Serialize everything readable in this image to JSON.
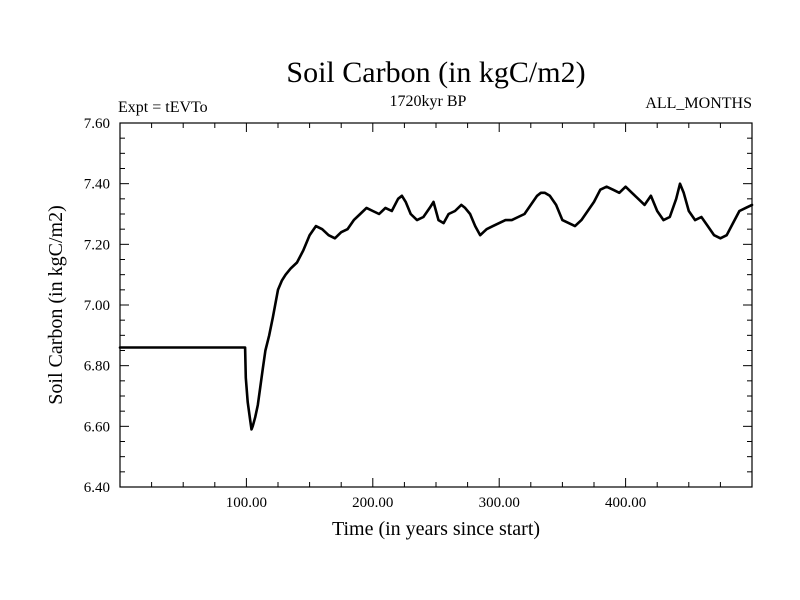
{
  "chart_data": {
    "type": "line",
    "title": "Soil Carbon (in kgC/m2)",
    "subtitle_left": "Expt = tEVTo",
    "subtitle_center": "1720kyr BP",
    "subtitle_right": "ALL_MONTHS",
    "xlabel": "Time (in years since start)",
    "ylabel": "Soil Carbon (in kgC/m2)",
    "xlim": [
      0,
      500
    ],
    "ylim": [
      6.4,
      7.6
    ],
    "x_ticks": [
      100,
      200,
      300,
      400
    ],
    "x_tick_labels": [
      "100.00",
      "200.00",
      "300.00",
      "400.00"
    ],
    "y_ticks": [
      6.4,
      6.6,
      6.8,
      7.0,
      7.2,
      7.4,
      7.6
    ],
    "y_tick_labels": [
      "6.40",
      "6.60",
      "6.80",
      "7.00",
      "7.20",
      "7.40",
      "7.60"
    ],
    "grid": false,
    "series": [
      {
        "name": "Soil Carbon",
        "x": [
          0,
          99,
          99.5,
          101,
          103,
          104,
          105,
          107,
          109,
          111,
          113,
          115,
          118,
          121,
          125,
          128,
          131,
          135,
          140,
          145,
          150,
          155,
          160,
          165,
          170,
          175,
          180,
          185,
          190,
          195,
          200,
          205,
          210,
          215,
          220,
          223,
          226,
          230,
          235,
          240,
          245,
          248,
          252,
          256,
          260,
          265,
          270,
          273,
          277,
          281,
          285,
          290,
          295,
          300,
          305,
          310,
          315,
          320,
          325,
          330,
          333,
          336,
          340,
          345,
          350,
          355,
          360,
          365,
          370,
          375,
          380,
          385,
          390,
          395,
          400,
          405,
          410,
          415,
          420,
          425,
          430,
          435,
          440,
          443,
          446,
          450,
          455,
          460,
          465,
          470,
          475,
          480,
          485,
          490,
          495,
          500
        ],
        "values": [
          6.86,
          6.86,
          6.76,
          6.68,
          6.62,
          6.59,
          6.6,
          6.63,
          6.67,
          6.73,
          6.79,
          6.85,
          6.9,
          6.96,
          7.05,
          7.08,
          7.1,
          7.12,
          7.14,
          7.18,
          7.23,
          7.26,
          7.25,
          7.23,
          7.22,
          7.24,
          7.25,
          7.28,
          7.3,
          7.32,
          7.31,
          7.3,
          7.32,
          7.31,
          7.35,
          7.36,
          7.34,
          7.3,
          7.28,
          7.29,
          7.32,
          7.34,
          7.28,
          7.27,
          7.3,
          7.31,
          7.33,
          7.32,
          7.3,
          7.26,
          7.23,
          7.25,
          7.26,
          7.27,
          7.28,
          7.28,
          7.29,
          7.3,
          7.33,
          7.36,
          7.37,
          7.37,
          7.36,
          7.33,
          7.28,
          7.27,
          7.26,
          7.28,
          7.31,
          7.34,
          7.38,
          7.39,
          7.38,
          7.37,
          7.39,
          7.37,
          7.35,
          7.33,
          7.36,
          7.31,
          7.28,
          7.29,
          7.35,
          7.4,
          7.37,
          7.31,
          7.28,
          7.29,
          7.26,
          7.23,
          7.22,
          7.23,
          7.27,
          7.31,
          7.32,
          7.33
        ]
      }
    ]
  }
}
